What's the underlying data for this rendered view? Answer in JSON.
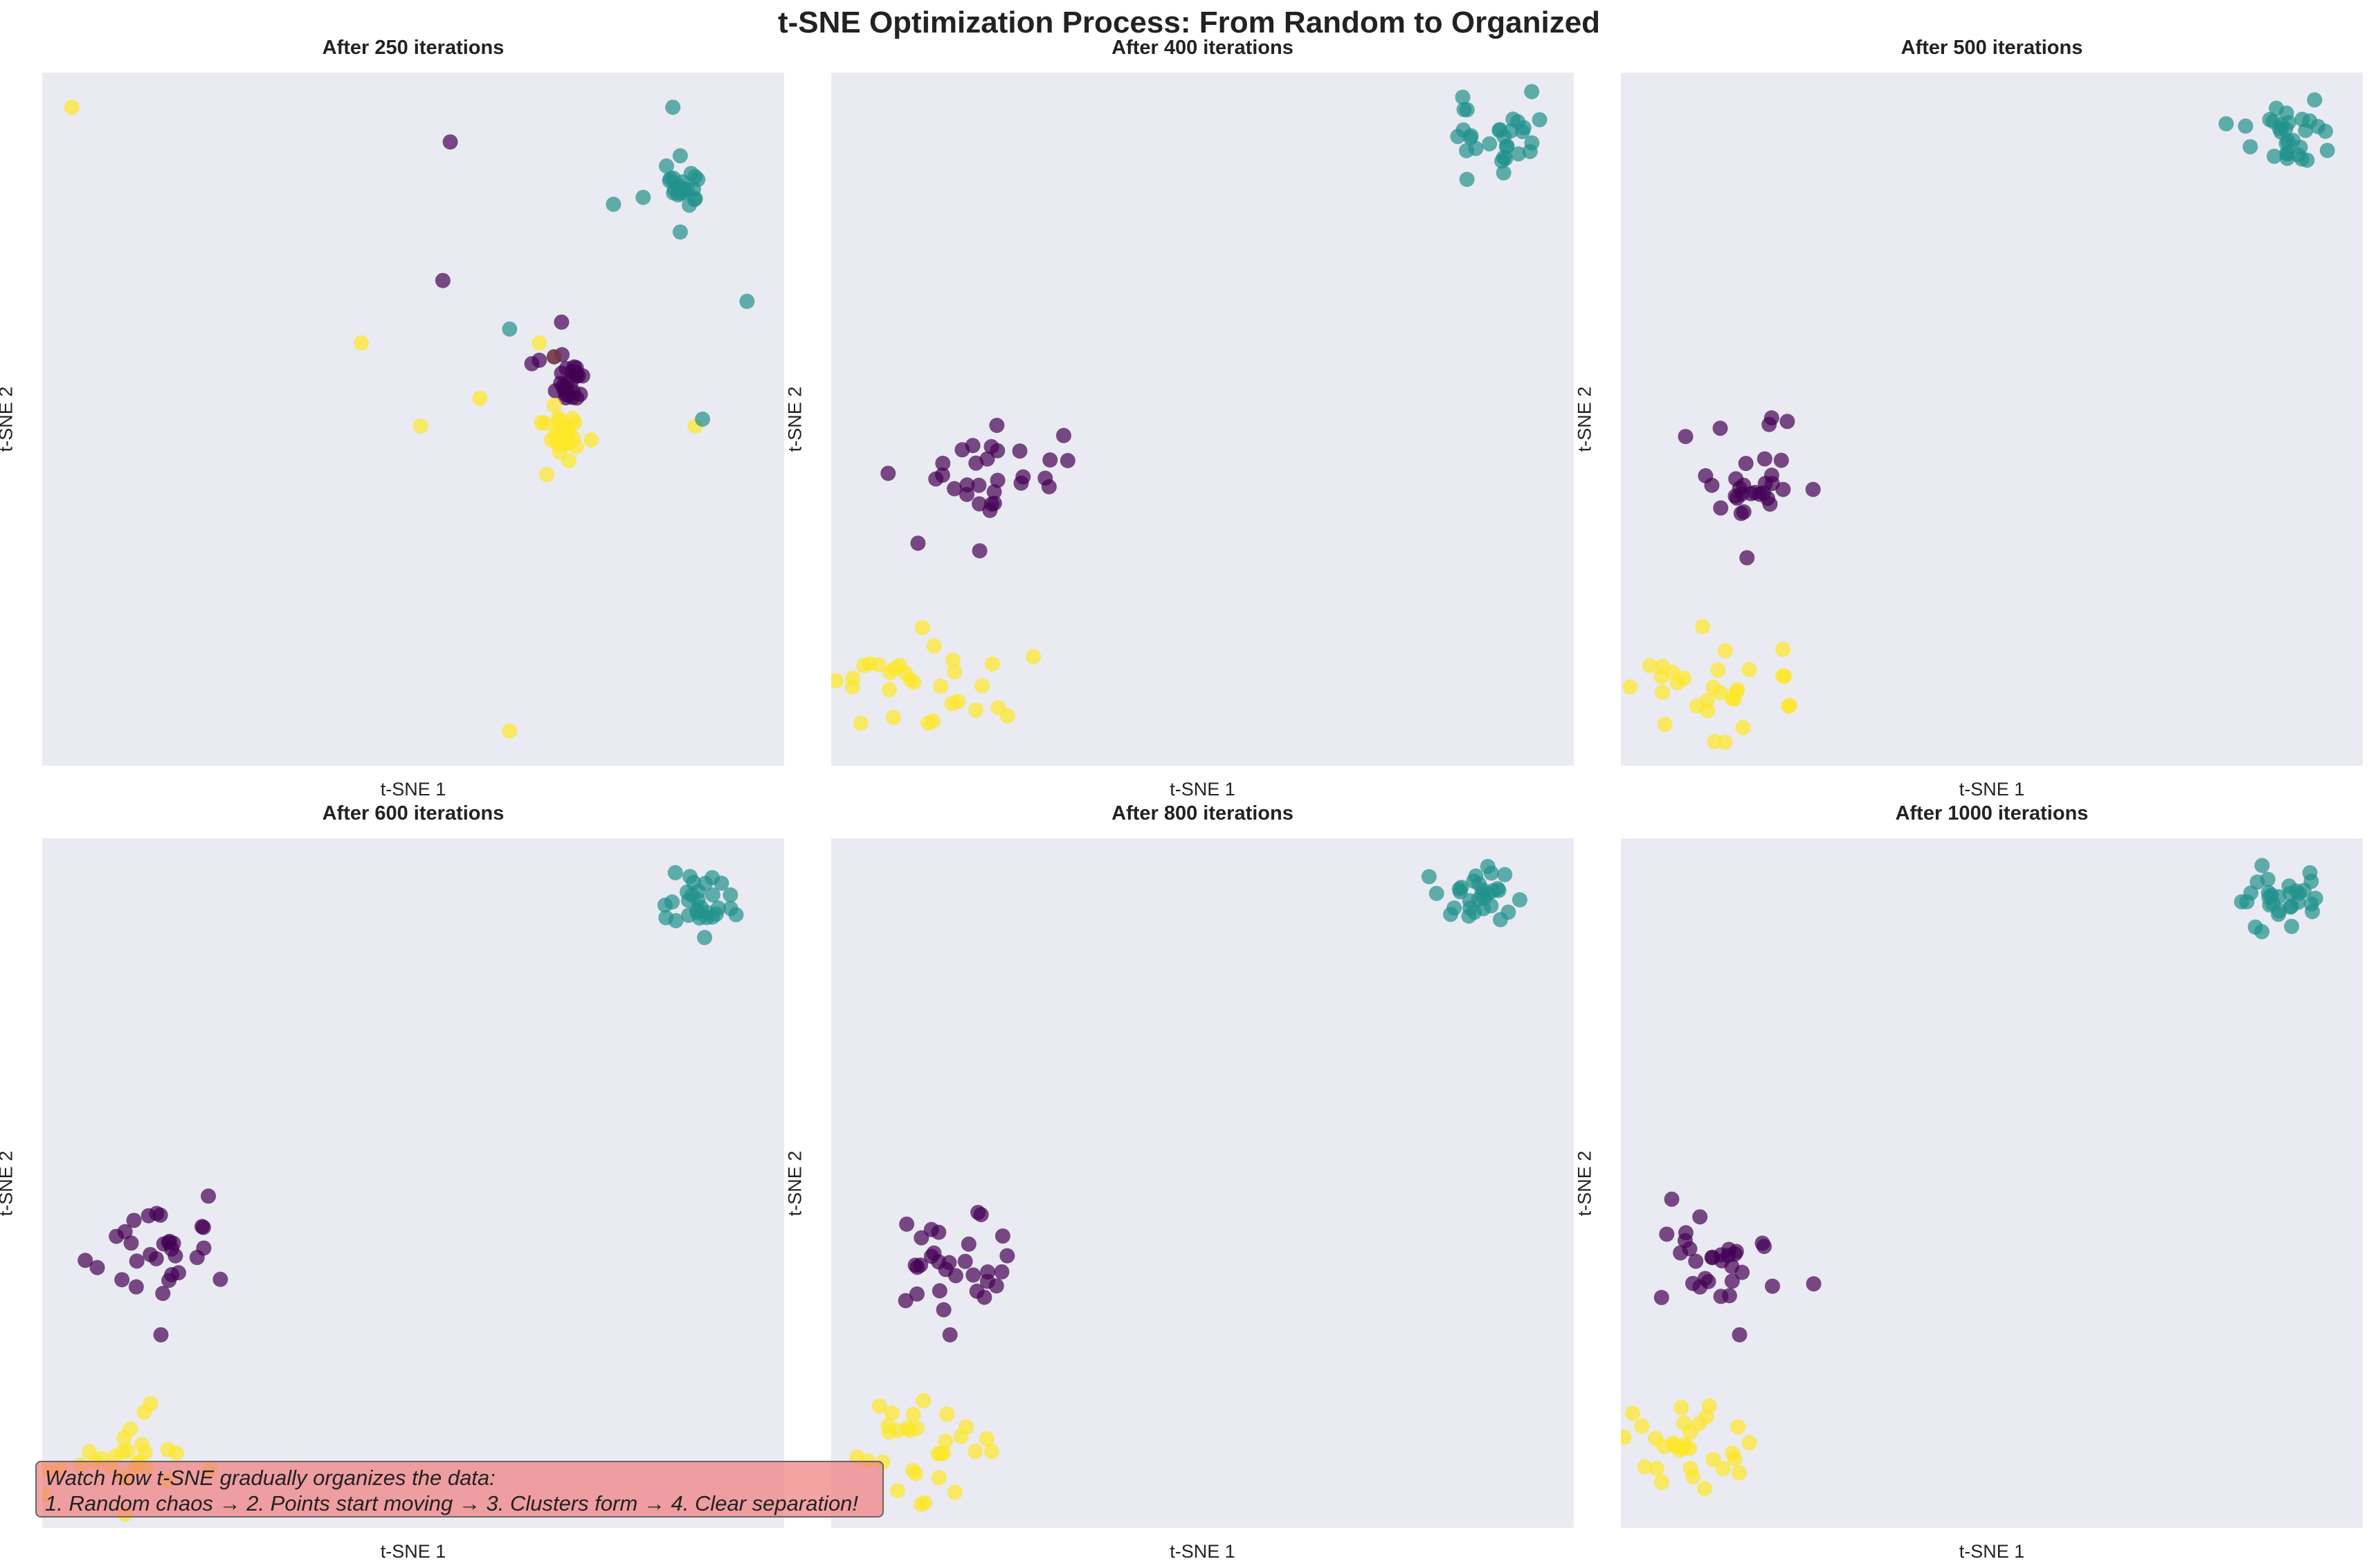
{
  "chart_data": {
    "type": "scatter",
    "title": "t-SNE Optimization Process: From Random to Organized",
    "colors": {
      "class_0": "#440154",
      "class_1": "#21918c",
      "class_2": "#fde725"
    },
    "alpha": 0.7,
    "grid": false,
    "panels": [
      {
        "title": "After 250 iterations",
        "xlabel": "t-SNE 1",
        "ylabel": "t-SNE 2",
        "xlim": [
          0,
          100
        ],
        "ylim": [
          0,
          100
        ],
        "points": [
          {
            "c": 2,
            "x": 4,
            "y": 95
          },
          {
            "c": 2,
            "x": 43,
            "y": 61
          },
          {
            "c": 2,
            "x": 51,
            "y": 49
          },
          {
            "c": 2,
            "x": 59,
            "y": 53
          },
          {
            "c": 2,
            "x": 67,
            "y": 61
          },
          {
            "c": 2,
            "x": 63,
            "y": 5
          },
          {
            "c": 2,
            "x": 68,
            "y": 42
          },
          {
            "c": 2,
            "x": 74,
            "y": 47
          },
          {
            "c": 2,
            "x": 88,
            "y": 49
          },
          {
            "c": 2,
            "x": 71,
            "y": 44
          },
          {
            "c": 2,
            "x": 69,
            "y": 59
          },
          {
            "c": 2,
            "x": 69,
            "y": 52
          },
          {
            "c": 0,
            "x": 55,
            "y": 90
          },
          {
            "c": 0,
            "x": 54,
            "y": 70
          },
          {
            "c": 0,
            "x": 70,
            "y": 64
          },
          {
            "c": 0,
            "x": 66,
            "y": 58
          },
          {
            "c": 0,
            "x": 67,
            "y": 58.5
          },
          {
            "c": 0,
            "x": 69,
            "y": 59
          },
          {
            "c": 1,
            "x": 85,
            "y": 95
          },
          {
            "c": 1,
            "x": 77,
            "y": 81
          },
          {
            "c": 1,
            "x": 81,
            "y": 82
          },
          {
            "c": 1,
            "x": 86,
            "y": 88
          },
          {
            "c": 1,
            "x": 88,
            "y": 85
          },
          {
            "c": 1,
            "x": 86,
            "y": 77
          },
          {
            "c": 1,
            "x": 95,
            "y": 67
          },
          {
            "c": 1,
            "x": 63,
            "y": 63
          },
          {
            "c": 1,
            "x": 89,
            "y": 50
          }
        ],
        "clusters": [
          {
            "c": 2,
            "cx": 70,
            "cy": 48,
            "sx": 1.2,
            "sy": 1.5,
            "n": 25
          },
          {
            "c": 0,
            "cx": 71,
            "cy": 56,
            "sx": 1.0,
            "sy": 2.0,
            "n": 24
          },
          {
            "c": 1,
            "cx": 86,
            "cy": 83,
            "sx": 1.3,
            "sy": 1.5,
            "n": 20
          }
        ]
      },
      {
        "title": "After 400 iterations",
        "xlabel": "t-SNE 1",
        "ylabel": "t-SNE 2",
        "xlim": [
          0,
          100
        ],
        "ylim": [
          0,
          100
        ],
        "points": [
          {
            "c": 0,
            "x": 20,
            "y": 31
          }
        ],
        "clusters": [
          {
            "c": 0,
            "cx": 21,
            "cy": 43,
            "sx": 5.5,
            "sy": 3.6,
            "n": 30
          },
          {
            "c": 2,
            "cx": 13,
            "cy": 12,
            "sx": 6,
            "sy": 3.6,
            "n": 30
          },
          {
            "c": 1,
            "cx": 90,
            "cy": 91,
            "sx": 3.8,
            "sy": 2.6,
            "n": 30
          }
        ]
      },
      {
        "title": "After 500 iterations",
        "xlabel": "t-SNE 1",
        "ylabel": "t-SNE 2",
        "xlim": [
          0,
          100
        ],
        "ylim": [
          0,
          100
        ],
        "points": [
          {
            "c": 0,
            "x": 17,
            "y": 30
          }
        ],
        "clusters": [
          {
            "c": 0,
            "cx": 17,
            "cy": 41,
            "sx": 4.5,
            "sy": 3.6,
            "n": 30
          },
          {
            "c": 2,
            "cx": 12,
            "cy": 11,
            "sx": 5,
            "sy": 3.4,
            "n": 30
          },
          {
            "c": 1,
            "cx": 89,
            "cy": 91,
            "sx": 3,
            "sy": 2.4,
            "n": 30
          }
        ]
      },
      {
        "title": "After 600 iterations",
        "xlabel": "t-SNE 1",
        "ylabel": "t-SNE 2",
        "xlim": [
          0,
          100
        ],
        "ylim": [
          0,
          100
        ],
        "points": [
          {
            "c": 0,
            "x": 16,
            "y": 28
          }
        ],
        "clusters": [
          {
            "c": 0,
            "cx": 15,
            "cy": 40,
            "sx": 4.5,
            "sy": 3.4,
            "n": 30
          },
          {
            "c": 2,
            "cx": 11,
            "cy": 11,
            "sx": 5,
            "sy": 3.6,
            "n": 30
          },
          {
            "c": 1,
            "cx": 89,
            "cy": 91,
            "sx": 3,
            "sy": 2.4,
            "n": 30
          }
        ]
      },
      {
        "title": "After 800 iterations",
        "xlabel": "t-SNE 1",
        "ylabel": "t-SNE 2",
        "xlim": [
          0,
          100
        ],
        "ylim": [
          0,
          100
        ],
        "points": [
          {
            "c": 0,
            "x": 16,
            "y": 28
          }
        ],
        "clusters": [
          {
            "c": 0,
            "cx": 16,
            "cy": 39,
            "sx": 4.5,
            "sy": 3.4,
            "n": 30
          },
          {
            "c": 2,
            "cx": 11,
            "cy": 11,
            "sx": 5,
            "sy": 3.6,
            "n": 30
          },
          {
            "c": 1,
            "cx": 88,
            "cy": 92,
            "sx": 3,
            "sy": 2.4,
            "n": 30
          }
        ]
      },
      {
        "title": "After 1000 iterations",
        "xlabel": "t-SNE 1",
        "ylabel": "t-SNE 2",
        "xlim": [
          0,
          100
        ],
        "ylim": [
          0,
          100
        ],
        "points": [
          {
            "c": 0,
            "x": 16,
            "y": 28
          }
        ],
        "clusters": [
          {
            "c": 0,
            "cx": 15,
            "cy": 39,
            "sx": 4.5,
            "sy": 3.4,
            "n": 30
          },
          {
            "c": 2,
            "cx": 11,
            "cy": 11,
            "sx": 5,
            "sy": 3.6,
            "n": 30
          },
          {
            "c": 1,
            "cx": 89,
            "cy": 91,
            "sx": 3,
            "sy": 2.4,
            "n": 30
          }
        ]
      }
    ],
    "annotation": {
      "line1": "Watch how t-SNE gradually organizes the data:",
      "line2": "1. Random chaos → 2. Points start moving → 3. Clusters form → 4. Clear separation!"
    }
  }
}
